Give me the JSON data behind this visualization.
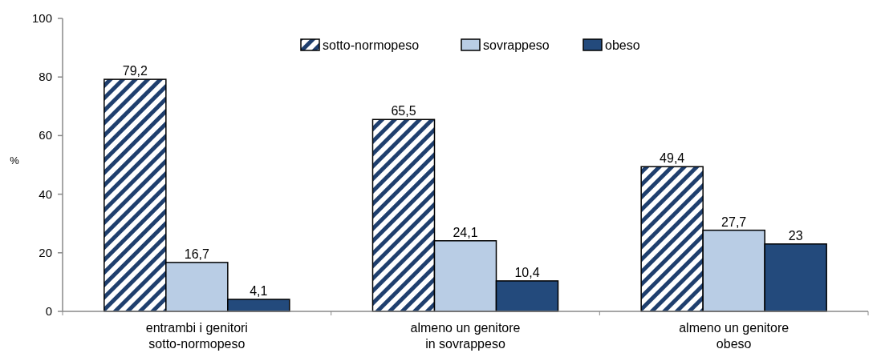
{
  "chart_data": {
    "type": "bar",
    "ylabel": "%",
    "categories": [
      "entrambi i genitori\nsotto-normopeso",
      "almeno un genitore\nin sovrappeso",
      "almeno un genitore\nobeso"
    ],
    "series": [
      {
        "name": "sotto-normopeso",
        "color": "#1f3f6e",
        "values": [
          79.2,
          65.5,
          49.4
        ],
        "value_labels": [
          "79,2",
          "65,5",
          "49,4"
        ]
      },
      {
        "name": "sovrappeso",
        "color": "#b9cde5",
        "values": [
          16.7,
          24.1,
          27.7
        ],
        "value_labels": [
          "16,7",
          "24,1",
          "27,7"
        ]
      },
      {
        "name": "obeso",
        "color": "#234a7c",
        "values": [
          4.1,
          10.4,
          23
        ],
        "value_labels": [
          "4,1",
          "10,4",
          "23"
        ]
      }
    ],
    "ylim": [
      0,
      100
    ],
    "yticks": [
      0,
      20,
      40,
      60,
      80,
      100
    ],
    "legend": "top"
  }
}
